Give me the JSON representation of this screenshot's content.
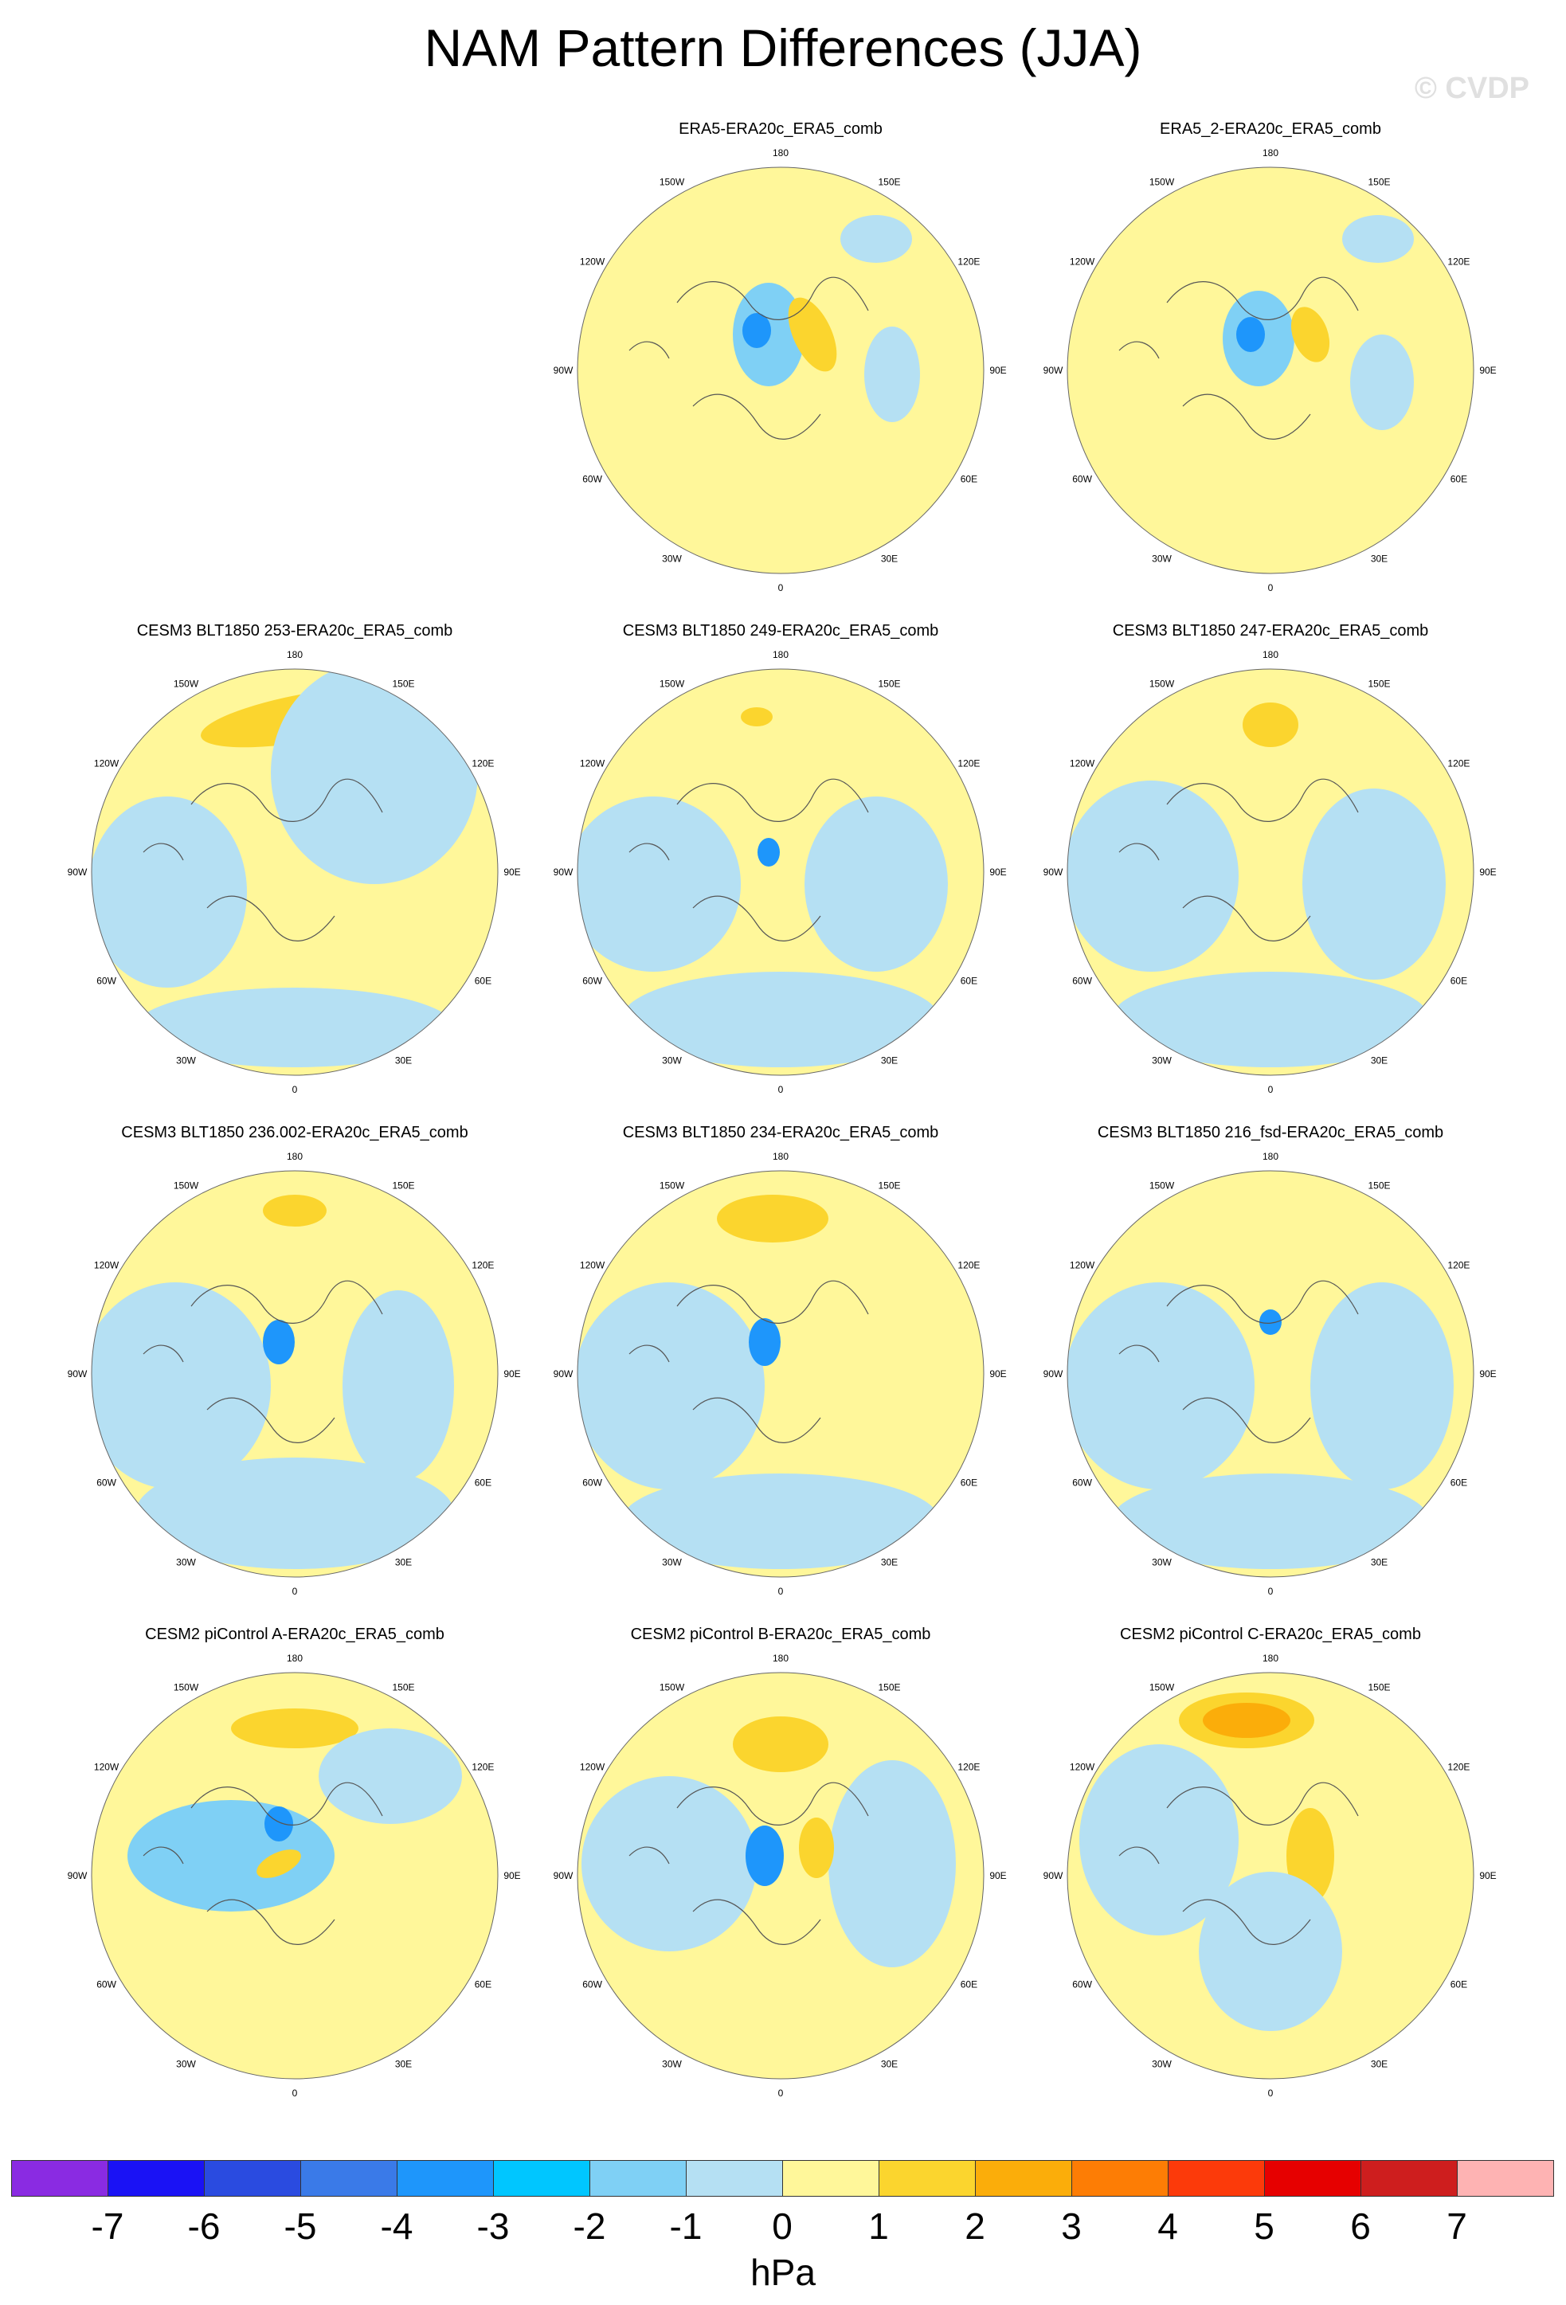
{
  "title": "NAM Pattern Differences (JJA)",
  "watermark": "© CVDP",
  "longitude_labels": [
    "180",
    "150E",
    "120E",
    "90E",
    "60E",
    "30E",
    "0",
    "30W",
    "60W",
    "90W",
    "120W",
    "150W"
  ],
  "panels": [
    {
      "title": "ERA5-ERA20c_ERA5_comb"
    },
    {
      "title": "ERA5_2-ERA20c_ERA5_comb"
    },
    {
      "title": "CESM3 BLT1850 253-ERA20c_ERA5_comb"
    },
    {
      "title": "CESM3 BLT1850 249-ERA20c_ERA5_comb"
    },
    {
      "title": "CESM3 BLT1850 247-ERA20c_ERA5_comb"
    },
    {
      "title": "CESM3 BLT1850 236.002-ERA20c_ERA5_comb"
    },
    {
      "title": "CESM3 BLT1850 234-ERA20c_ERA5_comb"
    },
    {
      "title": "CESM3 BLT1850 216_fsd-ERA20c_ERA5_comb"
    },
    {
      "title": "CESM2 piControl A-ERA20c_ERA5_comb"
    },
    {
      "title": "CESM2 piControl B-ERA20c_ERA5_comb"
    },
    {
      "title": "CESM2 piControl C-ERA20c_ERA5_comb"
    }
  ],
  "colorbar": {
    "units": "hPa",
    "labels": [
      "-7",
      "-6",
      "-5",
      "-4",
      "-3",
      "-2",
      "-1",
      "0",
      "1",
      "2",
      "3",
      "4",
      "5",
      "6",
      "7"
    ],
    "colors": [
      "#8a2be2",
      "#1a12f5",
      "#2a4be0",
      "#3a7ae8",
      "#1e96fb",
      "#00c6ff",
      "#7fd0f5",
      "#b5e0f3",
      "#fff79a",
      "#fbd52e",
      "#fbad0a",
      "#fd7d05",
      "#fc3a0a",
      "#e60000",
      "#ce1e1e",
      "#feb3b3"
    ]
  },
  "colors": {
    "ocean_default": "#b5e0f3",
    "land_default": "#fff79a",
    "positive_1_2": "#fbd52e",
    "positive_2_3": "#fbad0a",
    "negative_2_1": "#7fd0f5",
    "negative_3_2": "#1e96fb",
    "coast": "#555555"
  }
}
